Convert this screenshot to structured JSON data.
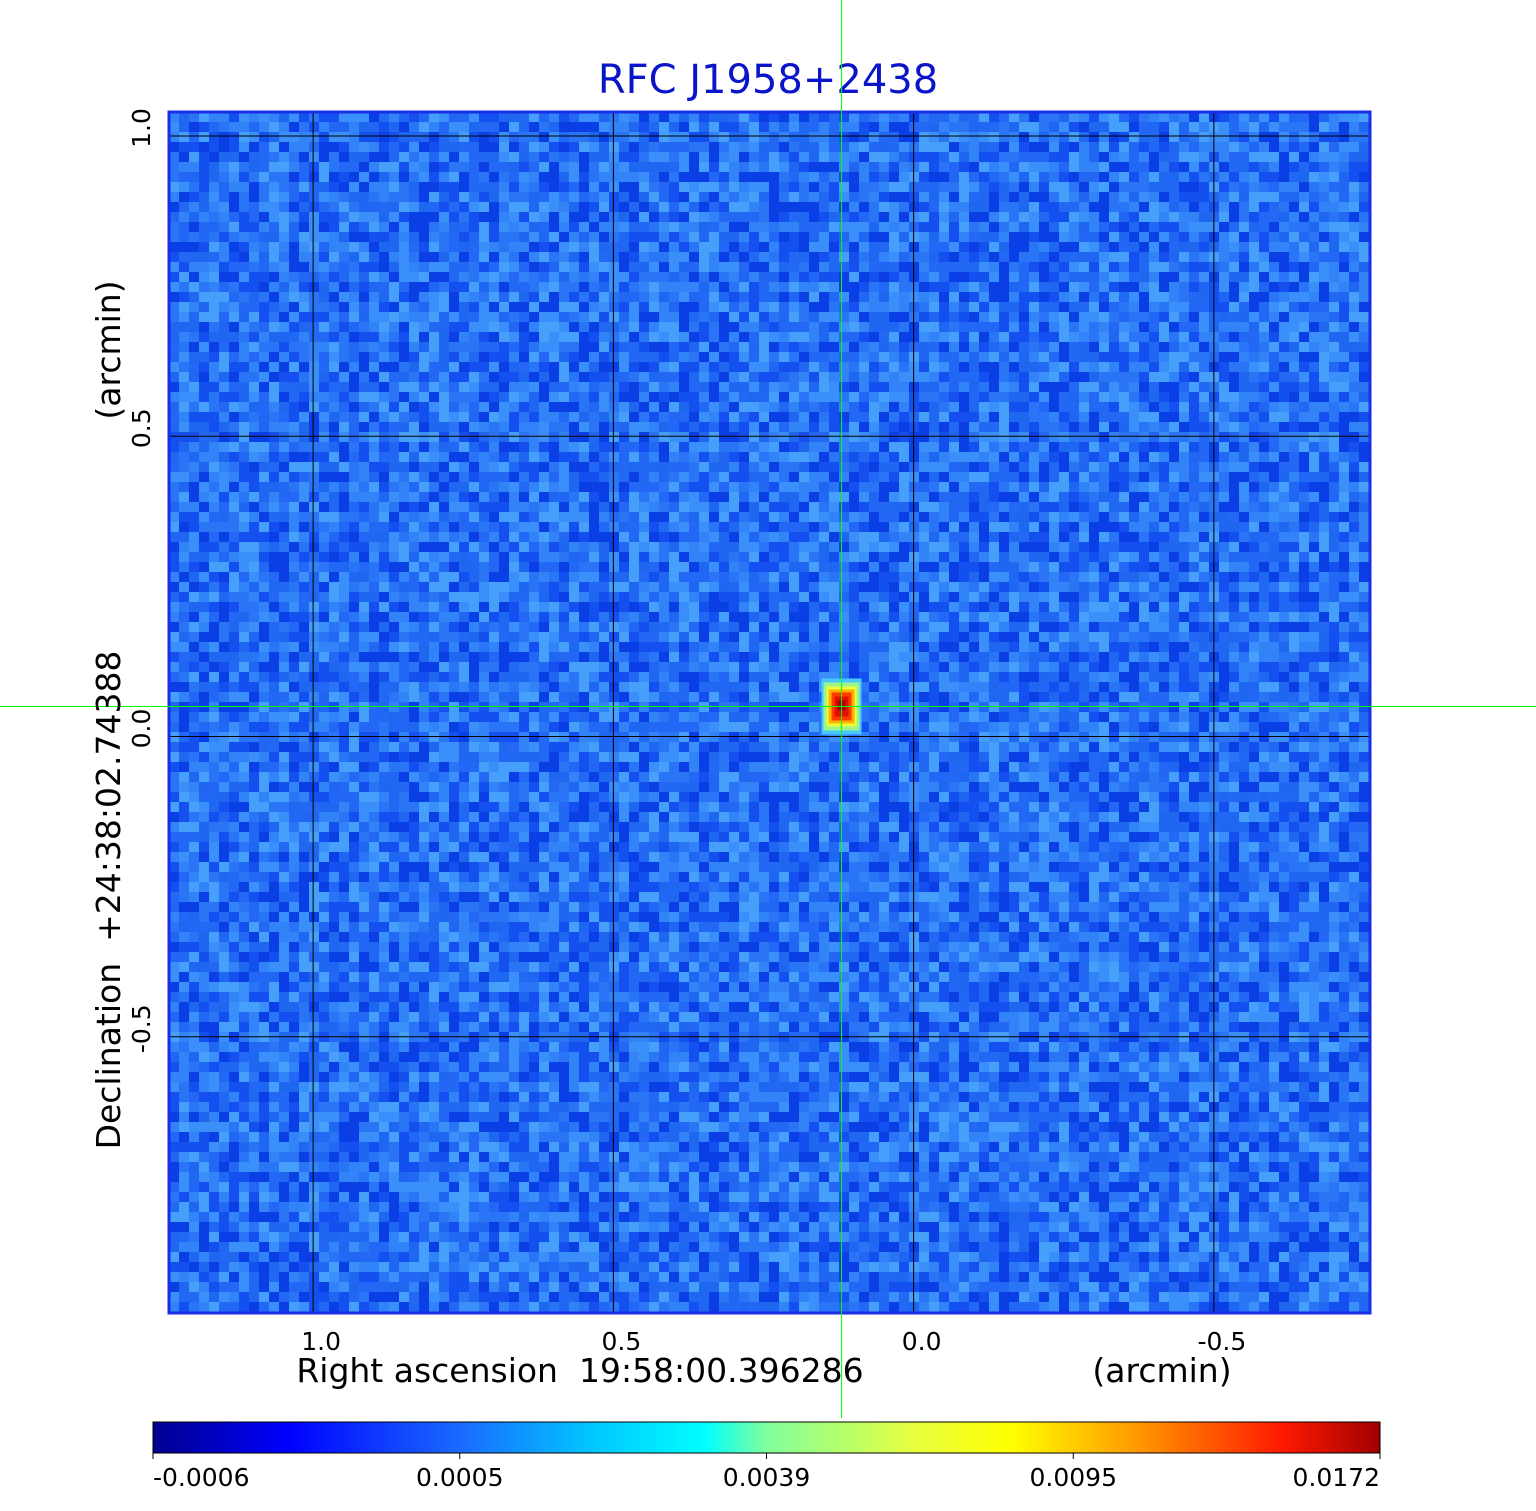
{
  "chart_data": {
    "type": "heatmap",
    "title": "RFC J1958+2438",
    "xlabel": "Right ascension  19:58:00.396286",
    "xunit": "(arcmin)",
    "ylabel": "Declination  +24:38:02.74388",
    "yunit": "(arcmin)",
    "xlim": [
      1.24,
      -0.76
    ],
    "ylim": [
      -0.96,
      1.04
    ],
    "x_ticks": [
      1.0,
      0.5,
      0.0,
      -0.5
    ],
    "x_tick_labels": [
      "1.0",
      "0.5",
      "0.0",
      "-0.5"
    ],
    "y_ticks": [
      -0.5,
      0.0,
      0.5,
      1.0
    ],
    "y_tick_labels": [
      "-0.5",
      "0.0",
      "0.5",
      "1.0"
    ],
    "grid": true,
    "crosshair": {
      "x": 0.12,
      "y": 0.05
    },
    "source": {
      "x": 0.12,
      "y": 0.05,
      "peak": 0.0172
    },
    "colormap": "jet",
    "colorbar": {
      "ticks": [
        "-0.0006",
        "0.0005",
        "0.0039",
        "0.0095",
        "0.0172"
      ],
      "range": [
        -0.0006,
        0.0172
      ]
    },
    "colors": {
      "title": "#0a14c8",
      "frame": "#1a2ee6",
      "grid": "#000000",
      "crosshair": "#00ff00",
      "background_noise": "#1f66f0"
    }
  }
}
